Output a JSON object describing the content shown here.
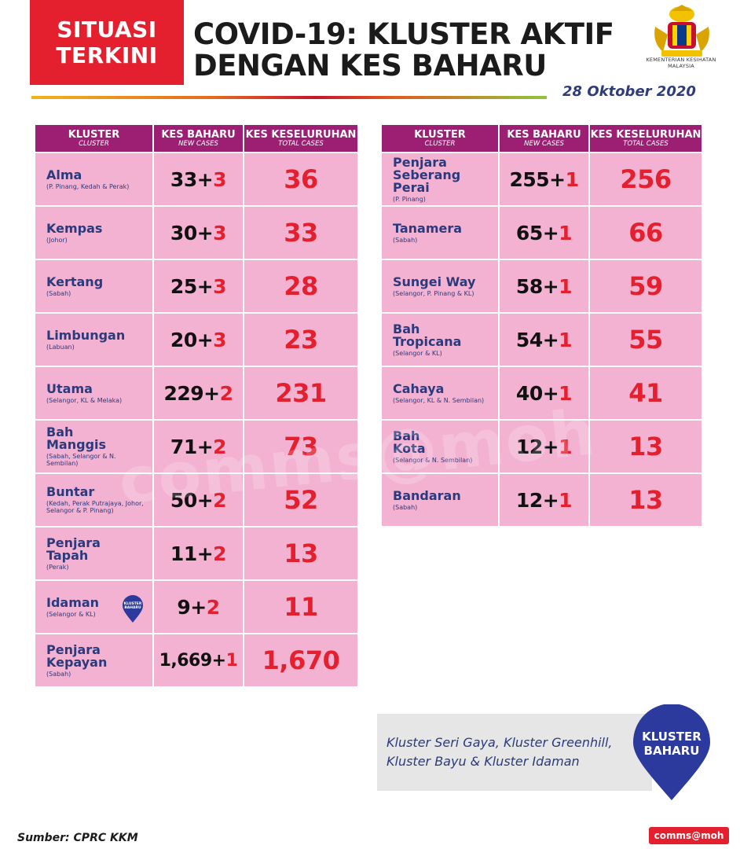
{
  "header": {
    "badge_line1": "SITUASI",
    "badge_line2": "TERKINI",
    "title_line1": "COVID-19: KLUSTER AKTIF",
    "title_line2": "DENGAN KES BAHARU",
    "ministry": "KEMENTERIAN KESIHATAN MALAYSIA",
    "date": "28 Oktober 2020"
  },
  "columns": {
    "cluster": "KLUSTER",
    "cluster_sub": "CLUSTER",
    "new": "KES BAHARU",
    "new_sub": "NEW CASES",
    "total": "KES KESELURUHAN",
    "total_sub": "TOTAL CASES"
  },
  "left_clusters": [
    {
      "name": "Alma",
      "states": "(P. Pinang, Kedah & Perak)",
      "base": "33+",
      "inc": "3",
      "total": "36"
    },
    {
      "name": "Kempas",
      "states": "(Johor)",
      "base": "30+",
      "inc": "3",
      "total": "33"
    },
    {
      "name": "Kertang",
      "states": "(Sabah)",
      "base": "25+",
      "inc": "3",
      "total": "28"
    },
    {
      "name": "Limbungan",
      "states": "(Labuan)",
      "base": "20+",
      "inc": "3",
      "total": "23"
    },
    {
      "name": "Utama",
      "states": "(Selangor, KL & Melaka)",
      "base": "229+",
      "inc": "2",
      "total": "231"
    },
    {
      "name": "Bah Manggis",
      "states": "(Sabah, Selangor & N. Sembilan)",
      "base": "71+",
      "inc": "2",
      "total": "73"
    },
    {
      "name": "Buntar",
      "states": "(Kedah, Perak Putrajaya, Johor, Selangor & P. Pinang)",
      "base": "50+",
      "inc": "2",
      "total": "52"
    },
    {
      "name": "Penjara Tapah",
      "states": "(Perak)",
      "base": "11+",
      "inc": "2",
      "total": "13"
    },
    {
      "name": "Idaman",
      "states": "(Selangor & KL)",
      "base": "9+",
      "inc": "2",
      "total": "11",
      "badge": "KLUSTER BAHARU"
    },
    {
      "name": "Penjara Kepayan",
      "states": "(Sabah)",
      "base": "1,669+",
      "inc": "1",
      "total": "1,670"
    }
  ],
  "right_clusters": [
    {
      "name": "Penjara Seberang Perai",
      "states": "(P. Pinang)",
      "base": "255+",
      "inc": "1",
      "total": "256"
    },
    {
      "name": "Tanamera",
      "states": "(Sabah)",
      "base": "65+",
      "inc": "1",
      "total": "66"
    },
    {
      "name": "Sungei Way",
      "states": "(Selangor, P. Pinang & KL)",
      "base": "58+",
      "inc": "1",
      "total": "59"
    },
    {
      "name": "Bah Tropicana",
      "states": "(Selangor & KL)",
      "base": "54+",
      "inc": "1",
      "total": "55"
    },
    {
      "name": "Cahaya",
      "states": "(Selangor, KL & N. Sembilan)",
      "base": "40+",
      "inc": "1",
      "total": "41"
    },
    {
      "name": "Bah Kota",
      "states": "(Selangor & N. Sembilan)",
      "base": "12+",
      "inc": "1",
      "total": "13"
    },
    {
      "name": "Bandaran",
      "states": "(Sabah)",
      "base": "12+",
      "inc": "1",
      "total": "13"
    }
  ],
  "new_clusters": {
    "text_line1": "Kluster Seri Gaya, Kluster Greenhill,",
    "text_line2": "Kluster Bayu & Kluster Idaman",
    "pin_line1": "KLUSTER",
    "pin_line2": "BAHARU"
  },
  "watermark": "comms@moh",
  "footer": {
    "source": "Sumber: CPRC KKM",
    "handle": "comms@moh"
  },
  "colors": {
    "red": "#e5202e",
    "header_purple": "#9c1f74",
    "row_pink": "#f3b2d2",
    "navy": "#2b3a7c"
  }
}
